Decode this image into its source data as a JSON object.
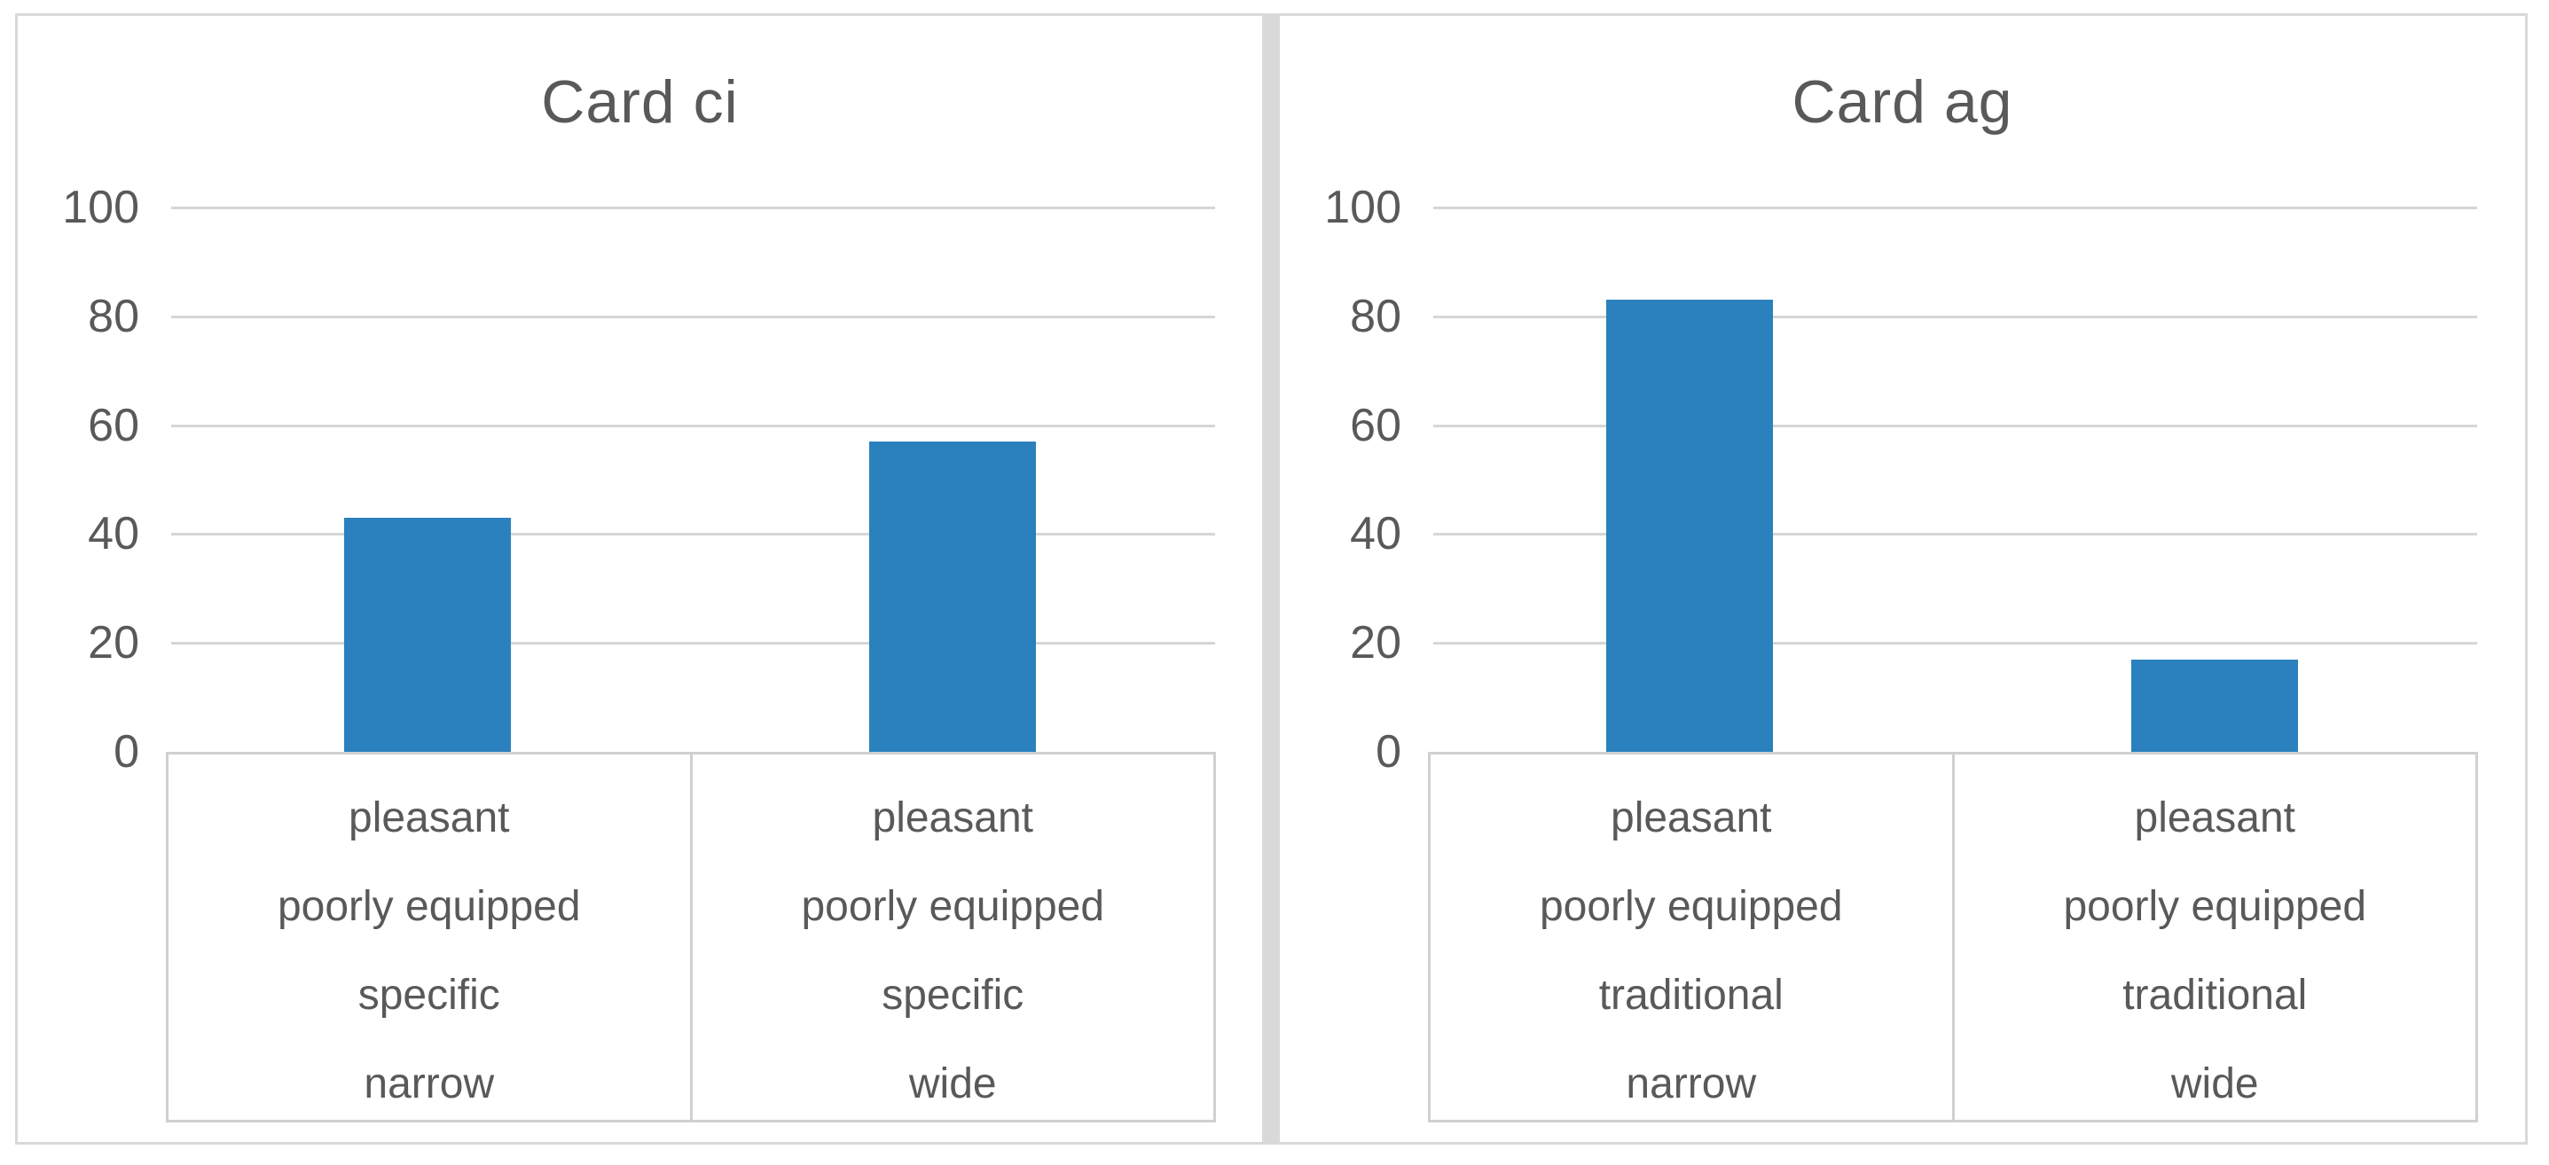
{
  "page": {
    "background_color": "#ffffff",
    "panel_border_color": "#d9d9d9",
    "gridline_color": "#d6d6d6",
    "table_border_color": "#d0d0d0",
    "text_color": "#595959",
    "bar_color": "#2a81be"
  },
  "chart_data": [
    {
      "type": "bar",
      "title": "Card ci",
      "categories": [
        [
          "pleasant",
          "poorly equipped",
          "specific",
          "narrow"
        ],
        [
          "pleasant",
          "poorly equipped",
          "specific",
          "wide"
        ]
      ],
      "values": [
        43,
        57
      ],
      "xlabel": "",
      "ylabel": "",
      "ylim": [
        0,
        100
      ],
      "yticks": [
        0,
        20,
        40,
        60,
        80,
        100
      ],
      "grid": true,
      "legend": "none",
      "bar_color": "#2a81be"
    },
    {
      "type": "bar",
      "title": "Card ag",
      "categories": [
        [
          "pleasant",
          "poorly equipped",
          "traditional",
          "narrow"
        ],
        [
          "pleasant",
          "poorly equipped",
          "traditional",
          "wide"
        ]
      ],
      "values": [
        83,
        17
      ],
      "xlabel": "",
      "ylabel": "",
      "ylim": [
        0,
        100
      ],
      "yticks": [
        0,
        20,
        40,
        60,
        80,
        100
      ],
      "grid": true,
      "legend": "none",
      "bar_color": "#2a81be"
    }
  ]
}
